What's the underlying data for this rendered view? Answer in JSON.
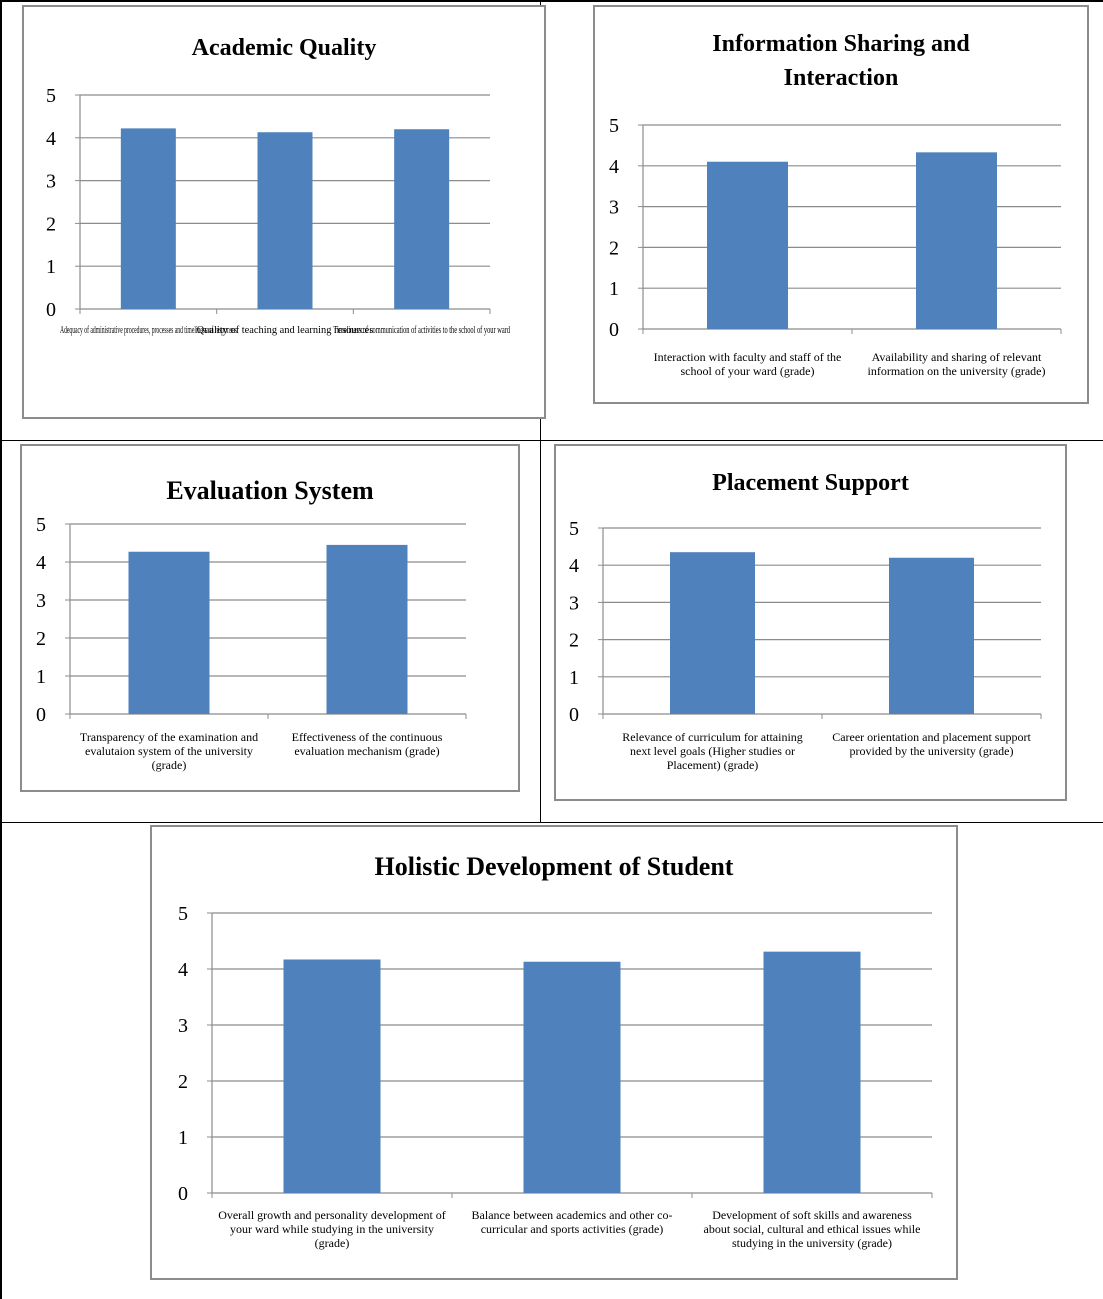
{
  "chart_data": [
    {
      "type": "bar",
      "title": [
        "Academic Quality"
      ],
      "categories": [
        "Adequacy of administrative procedures, processes and timeliness of responses",
        "Quality of teaching and learning resources",
        "Timeliness of communication of activities to the school of your ward"
      ],
      "category_lines": [
        [
          "Adequacy of administrative procedures, processes and timeliness of responses",
          "",
          ""
        ],
        [
          "Quality of teaching and learning resources"
        ],
        [
          "Timeliness of communication of activities to the school of your ward"
        ]
      ],
      "values": [
        4.22,
        4.13,
        4.2
      ],
      "ylim": [
        0,
        5
      ],
      "yticks": [
        0,
        1,
        2,
        3,
        4,
        5
      ],
      "bar_color": "#4f81bd",
      "grid": true
    },
    {
      "type": "bar",
      "title": [
        "Information Sharing and",
        "Interaction"
      ],
      "categories": [
        "Interaction with faculty and staff of the school of your ward (grade)",
        "Availability and sharing of relevant information on the university (grade)"
      ],
      "category_lines": [
        [
          "Interaction with faculty and staff of the",
          "school of your ward (grade)"
        ],
        [
          "Availability and sharing of relevant",
          "information on the university (grade)"
        ]
      ],
      "values": [
        4.1,
        4.33
      ],
      "ylim": [
        0,
        5
      ],
      "yticks": [
        0,
        1,
        2,
        3,
        4,
        5
      ],
      "bar_color": "#4f81bd",
      "grid": true
    },
    {
      "type": "bar",
      "title": [
        "Evaluation System"
      ],
      "categories": [
        "Transparency of the examination and evalutaion system of the university (grade)",
        "Effectiveness of the continuous evaluation mechanism (grade)"
      ],
      "category_lines": [
        [
          "Transparency of the examination and",
          "evalutaion system of the university",
          "(grade)"
        ],
        [
          "Effectiveness of the continuous",
          "evaluation mechanism (grade)"
        ]
      ],
      "values": [
        4.27,
        4.45
      ],
      "ylim": [
        0,
        5
      ],
      "yticks": [
        0,
        1,
        2,
        3,
        4,
        5
      ],
      "bar_color": "#4f81bd",
      "grid": true
    },
    {
      "type": "bar",
      "title": [
        "Placement Support"
      ],
      "categories": [
        "Relevance of curriculum for attaining next level goals (Higher studies or Placement) (grade)",
        "Career orientation and placement support provided by the university (grade)"
      ],
      "category_lines": [
        [
          "Relevance of curriculum for attaining",
          "next level goals (Higher studies or",
          "Placement) (grade)"
        ],
        [
          "Career orientation and placement support",
          "provided by the university (grade)"
        ]
      ],
      "values": [
        4.35,
        4.2
      ],
      "ylim": [
        0,
        5
      ],
      "yticks": [
        0,
        1,
        2,
        3,
        4,
        5
      ],
      "bar_color": "#4f81bd",
      "grid": true
    },
    {
      "type": "bar",
      "title": [
        "Holistic Development of Student"
      ],
      "categories": [
        "Overall growth and personality development of your ward while studying in the university (grade)",
        "Balance between academics and other co-curricular and sports activities (grade)",
        "Development of soft skills and awareness about social, cultural and ethical issues while studying in the university (grade)"
      ],
      "category_lines": [
        [
          "Overall growth and personality development of",
          "your ward while studying in the university",
          "(grade)"
        ],
        [
          "Balance between academics and other co-",
          "curricular and sports activities (grade)"
        ],
        [
          "Development of soft skills and awareness",
          "about social, cultural and ethical issues while",
          "studying in the university (grade)"
        ]
      ],
      "values": [
        4.17,
        4.13,
        4.31
      ],
      "ylim": [
        0,
        5
      ],
      "yticks": [
        0,
        1,
        2,
        3,
        4,
        5
      ],
      "bar_color": "#4f81bd",
      "grid": true
    }
  ]
}
